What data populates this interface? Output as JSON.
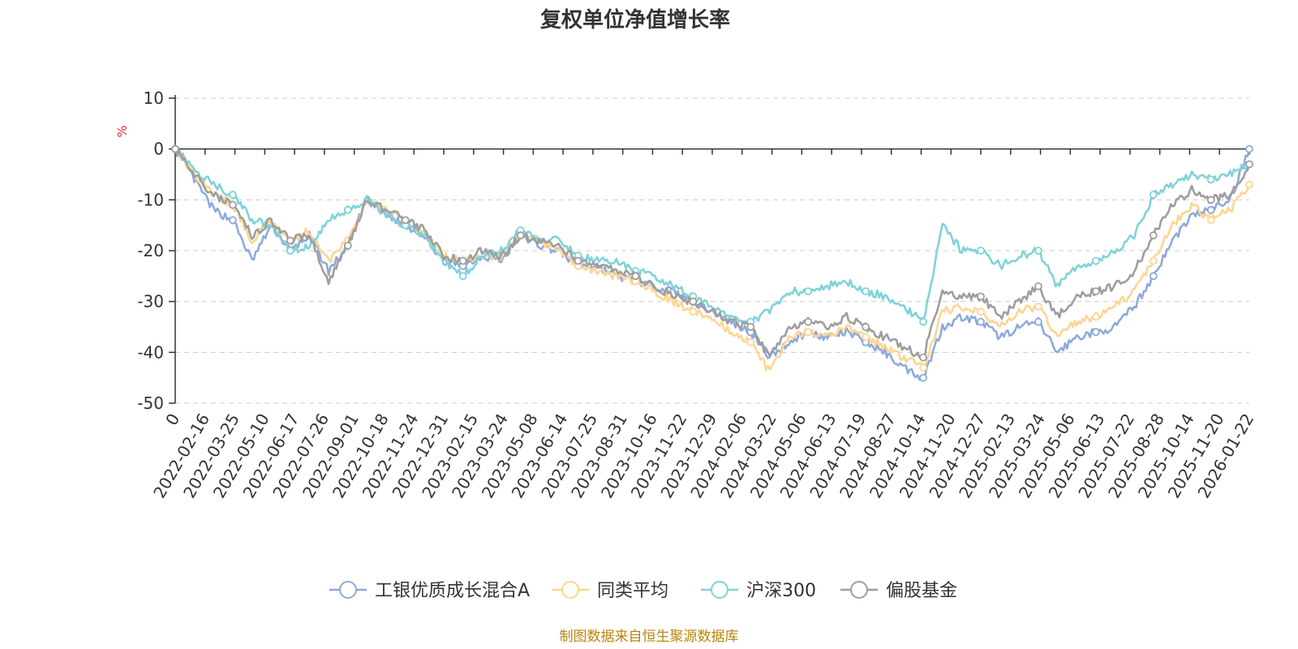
{
  "chart_data": {
    "type": "line",
    "title": "复权单位净值增长率",
    "ylabel": "%",
    "ylim": [
      -50,
      10
    ],
    "yticks": [
      10,
      0,
      -10,
      -20,
      -30,
      -40,
      -50
    ],
    "x_tick_labels": [
      "0",
      "2022-02-16",
      "2022-03-25",
      "2022-05-10",
      "2022-06-17",
      "2022-07-26",
      "2022-09-01",
      "2022-10-18",
      "2022-11-24",
      "2022-12-31",
      "2023-02-15",
      "2023-03-24",
      "2023-05-08",
      "2023-06-14",
      "2023-07-25",
      "2023-08-31",
      "2023-10-16",
      "2023-11-22",
      "2023-12-29",
      "2024-02-06",
      "2024-03-22",
      "2024-05-06",
      "2024-06-13",
      "2024-07-19",
      "2024-08-27",
      "2024-10-14",
      "2024-11-20",
      "2024-12-27",
      "2025-02-13",
      "2025-03-24",
      "2025-05-06",
      "2025-06-13",
      "2025-07-22",
      "2025-08-28",
      "2025-10-14",
      "2025-11-20",
      "2026-01-22"
    ],
    "grid": true,
    "legend_position": "bottom",
    "series": [
      {
        "name": "工银优质成长混合A",
        "color": "#8eaadb",
        "values": [
          0,
          -6,
          -12,
          -14,
          -22,
          -15,
          -20,
          -17,
          -24,
          -19,
          -10,
          -13,
          -15,
          -17,
          -22,
          -23,
          -21,
          -22,
          -17,
          -19,
          -20,
          -23,
          -23,
          -25,
          -26,
          -27,
          -28,
          -30,
          -32,
          -34,
          -36,
          -41,
          -38,
          -36,
          -37,
          -36,
          -38,
          -40,
          -43,
          -45,
          -35,
          -33,
          -34,
          -37,
          -35,
          -34,
          -40,
          -37,
          -36,
          -35,
          -31,
          -25,
          -18,
          -13,
          -12,
          -10,
          0
        ]
      },
      {
        "name": "同类平均",
        "color": "#ffd591",
        "values": [
          0,
          -5,
          -9,
          -11,
          -18,
          -14,
          -18,
          -16,
          -22,
          -18,
          -10,
          -12,
          -14,
          -17,
          -21,
          -22,
          -21,
          -21,
          -17,
          -18,
          -20,
          -23,
          -24,
          -25,
          -26,
          -28,
          -30,
          -32,
          -33,
          -36,
          -38,
          -44,
          -37,
          -36,
          -37,
          -35,
          -37,
          -39,
          -41,
          -43,
          -32,
          -31,
          -32,
          -35,
          -32,
          -31,
          -37,
          -34,
          -33,
          -31,
          -28,
          -22,
          -15,
          -11,
          -14,
          -12,
          -7
        ]
      },
      {
        "name": "沪深300",
        "color": "#7fd3d8",
        "values": [
          0,
          -4,
          -7,
          -9,
          -14,
          -15,
          -20,
          -19,
          -14,
          -12,
          -10,
          -13,
          -15,
          -17,
          -22,
          -25,
          -21,
          -20,
          -16,
          -18,
          -18,
          -21,
          -22,
          -22,
          -24,
          -25,
          -27,
          -29,
          -31,
          -33,
          -34,
          -32,
          -28,
          -28,
          -27,
          -26,
          -28,
          -29,
          -31,
          -34,
          -15,
          -20,
          -20,
          -23,
          -21,
          -20,
          -27,
          -23,
          -22,
          -20,
          -17,
          -9,
          -7,
          -5,
          -6,
          -5,
          -3
        ]
      },
      {
        "name": "偏股基金",
        "color": "#9e9e9e",
        "values": [
          0,
          -5,
          -9,
          -11,
          -17,
          -14,
          -18,
          -17,
          -26,
          -19,
          -10,
          -12,
          -14,
          -16,
          -21,
          -22,
          -20,
          -21,
          -17,
          -18,
          -19,
          -22,
          -23,
          -24,
          -25,
          -27,
          -29,
          -30,
          -32,
          -34,
          -35,
          -41,
          -35,
          -34,
          -35,
          -33,
          -35,
          -37,
          -39,
          -41,
          -28,
          -29,
          -29,
          -33,
          -30,
          -27,
          -33,
          -29,
          -28,
          -27,
          -24,
          -17,
          -11,
          -8,
          -10,
          -9,
          -3
        ]
      }
    ]
  },
  "footer": {
    "source": "制图数据来自恒生聚源数据库"
  }
}
